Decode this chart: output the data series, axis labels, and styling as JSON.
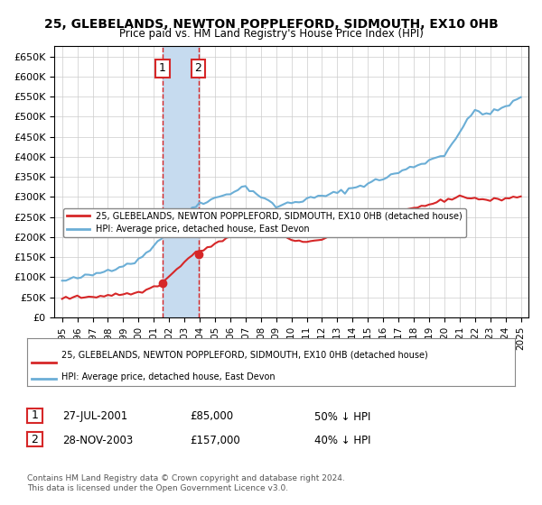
{
  "title1": "25, GLEBELANDS, NEWTON POPPLEFORD, SIDMOUTH, EX10 0HB",
  "title2": "Price paid vs. HM Land Registry's House Price Index (HPI)",
  "legend_line1": "25, GLEBELANDS, NEWTON POPPLEFORD, SIDMOUTH, EX10 0HB (detached house)",
  "legend_line2": "HPI: Average price, detached house, East Devon",
  "transaction1_label": "1",
  "transaction1_date": "27-JUL-2001",
  "transaction1_price": "£85,000",
  "transaction1_hpi": "50% ↓ HPI",
  "transaction1_year": 2001.57,
  "transaction1_value": 85000,
  "transaction2_label": "2",
  "transaction2_date": "28-NOV-2003",
  "transaction2_price": "£157,000",
  "transaction2_hpi": "40% ↓ HPI",
  "transaction2_year": 2003.91,
  "transaction2_value": 157000,
  "footnote1": "Contains HM Land Registry data © Crown copyright and database right 2024.",
  "footnote2": "This data is licensed under the Open Government Licence v3.0.",
  "hpi_color": "#6baed6",
  "price_color": "#d62728",
  "highlight_color": "#c6dbef",
  "background_color": "#ffffff",
  "grid_color": "#cccccc",
  "ylim": [
    0,
    675000
  ],
  "yticks": [
    0,
    50000,
    100000,
    150000,
    200000,
    250000,
    300000,
    350000,
    400000,
    450000,
    500000,
    550000,
    600000,
    650000
  ],
  "xlim_start": 1994.5,
  "xlim_end": 2025.5
}
